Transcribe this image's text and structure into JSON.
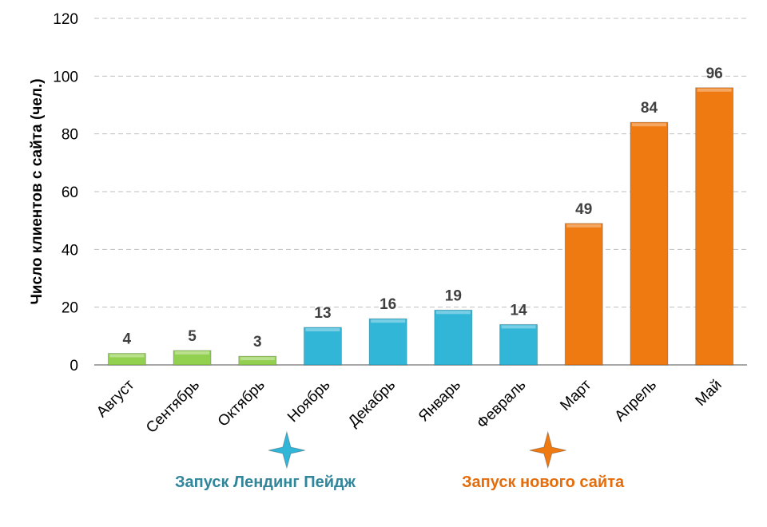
{
  "chart_data": {
    "type": "bar",
    "title": "",
    "ylabel": "Число клиентов с сайта (чел.)",
    "xlabel": "",
    "ylim": [
      0,
      120
    ],
    "yticks": [
      0,
      20,
      40,
      60,
      80,
      100,
      120
    ],
    "grid": true,
    "categories": [
      "Август",
      "Сентябрь",
      "Октябрь",
      "Ноябрь",
      "Декабрь",
      "Январь",
      "Февраль",
      "Март",
      "Апрель",
      "Май"
    ],
    "values": [
      4,
      5,
      3,
      13,
      16,
      19,
      14,
      49,
      84,
      96
    ],
    "bar_colors": [
      "#92d050",
      "#92d050",
      "#92d050",
      "#31b6d8",
      "#31b6d8",
      "#31b6d8",
      "#31b6d8",
      "#f07a12",
      "#f07a12",
      "#f07a12"
    ],
    "annotations": [
      {
        "text": "Запуск Лендинг Пейдж",
        "color": "#31869b",
        "icon": "star-4-point-icon",
        "icon_color": "#31b6d8",
        "category": "Ноябрь"
      },
      {
        "text": "Запуск нового сайта",
        "color": "#e46c0a",
        "icon": "star-4-point-icon",
        "icon_color": "#f07a12",
        "category": "Март"
      }
    ]
  }
}
